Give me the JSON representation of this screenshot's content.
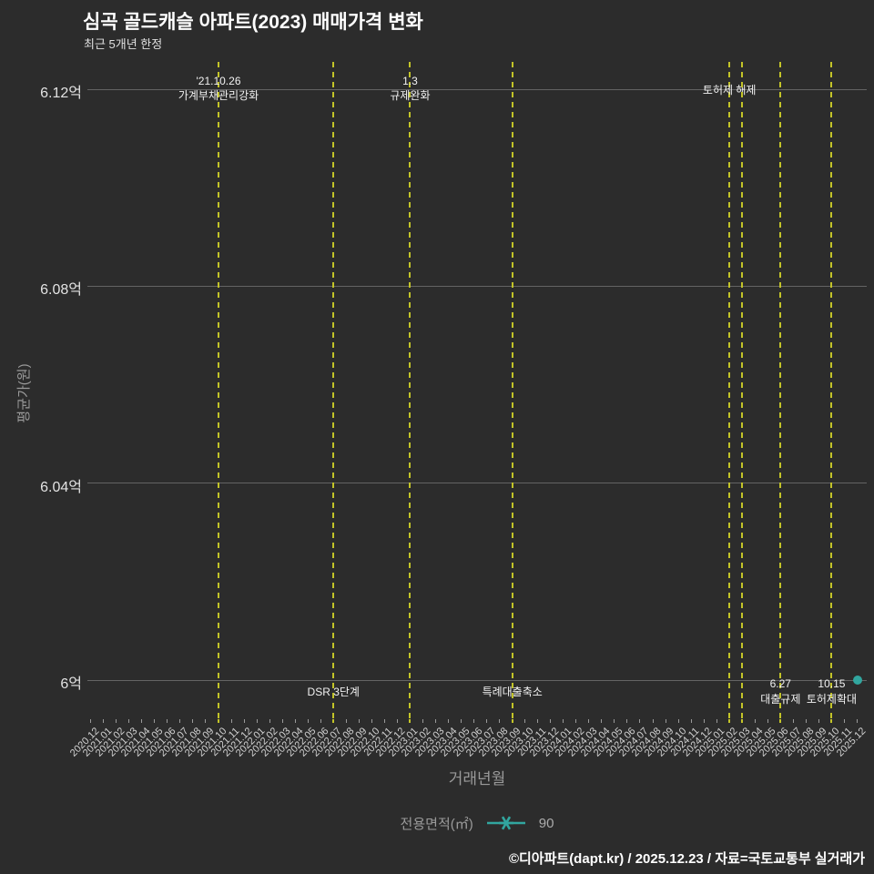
{
  "header": {
    "title": "심곡 골드캐슬 아파트(2023) 매매가격 변화",
    "subtitle": "최근 5개년 한정"
  },
  "footer": {
    "credit": "©디아파트(dapt.kr) / 2025.12.23 / 자료=국토교통부 실거래가"
  },
  "legend": {
    "title": "전용면적(㎡)",
    "entries": [
      {
        "label": "90",
        "color": "#31a69f",
        "marker": "asterisk-line"
      }
    ]
  },
  "chart_data": {
    "type": "line",
    "title": "심곡 골드캐슬 아파트(2023) 매매가격 변화",
    "subtitle": "최근 5개년 한정",
    "xlabel": "거래년월",
    "ylabel": "평균가(원)",
    "grid": "horizontal",
    "legend_position": "bottom-center",
    "x_categories": [
      "2020.12",
      "2021.01",
      "2021.02",
      "2021.03",
      "2021.04",
      "2021.05",
      "2021.06",
      "2021.07",
      "2021.08",
      "2021.09",
      "2021.10",
      "2021.11",
      "2021.12",
      "2022.01",
      "2022.02",
      "2022.03",
      "2022.04",
      "2022.05",
      "2022.06",
      "2022.07",
      "2022.08",
      "2022.09",
      "2022.10",
      "2022.11",
      "2022.12",
      "2023.01",
      "2023.02",
      "2023.03",
      "2023.04",
      "2023.05",
      "2023.06",
      "2023.07",
      "2023.08",
      "2023.09",
      "2023.10",
      "2023.11",
      "2023.12",
      "2024.01",
      "2024.02",
      "2024.03",
      "2024.04",
      "2024.05",
      "2024.06",
      "2024.07",
      "2024.08",
      "2024.09",
      "2024.10",
      "2024.11",
      "2024.12",
      "2025.01",
      "2025.02",
      "2025.03",
      "2025.04",
      "2025.05",
      "2025.06",
      "2025.07",
      "2025.08",
      "2025.09",
      "2025.10",
      "2025.11",
      "2025.12"
    ],
    "y_ticks": [
      {
        "value": 6.0,
        "label": "6억"
      },
      {
        "value": 6.04,
        "label": "6.04억"
      },
      {
        "value": 6.08,
        "label": "6.08억"
      },
      {
        "value": 6.12,
        "label": "6.12억"
      }
    ],
    "ylim_eok": [
      5.992,
      6.1256
    ],
    "series": [
      {
        "name": "90",
        "color": "#31a69f",
        "points": [
          {
            "x": "2025.12",
            "y_eok": 6.0
          }
        ]
      }
    ],
    "event_lines": [
      {
        "month": "2021.10",
        "position": "top",
        "lines": [
          "'21.10.26",
          "가계부채관리강화"
        ]
      },
      {
        "month": "2022.07",
        "position": "bottom",
        "lines": [
          "DSR 3단계"
        ]
      },
      {
        "month": "2023.01",
        "position": "top",
        "lines": [
          "1.3",
          "규제완화"
        ]
      },
      {
        "month": "2023.09",
        "position": "bottom",
        "lines": [
          "특례대출축소"
        ]
      },
      {
        "month": "2025.02",
        "position": "top",
        "lines": [
          "토허제 해제"
        ]
      },
      {
        "month": "2025.03",
        "position": "top",
        "lines": []
      },
      {
        "month": "2025.06",
        "position": "bottom",
        "lines": [
          "6.27",
          "대출규제"
        ]
      },
      {
        "month": "2025.10",
        "position": "bottom",
        "lines": [
          "10.15",
          "토허제확대"
        ]
      }
    ],
    "colors": {
      "background": "#2c2c2c",
      "grid": "#646464",
      "event_line": "#c3c428",
      "annotation_text": "#f2f2f2",
      "axis_text": "#d2d2d2",
      "axis_title": "#9a9a9a",
      "series": "#31a69f"
    }
  }
}
